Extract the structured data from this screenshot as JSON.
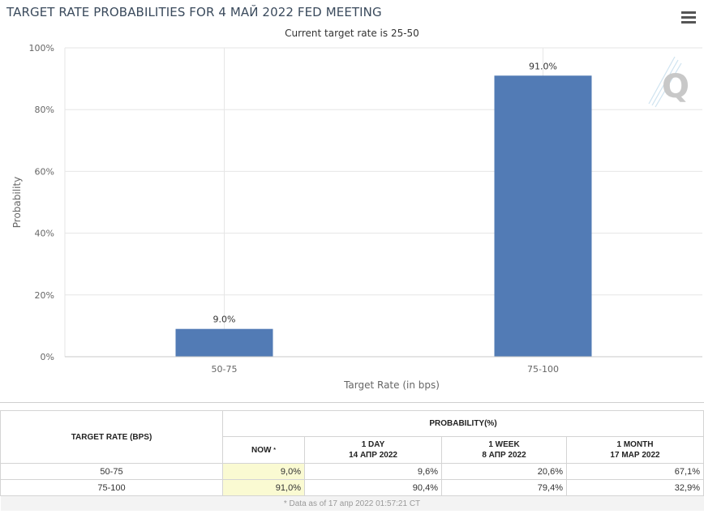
{
  "header": {
    "title": "TARGET RATE PROBABILITIES FOR 4 МАЙ 2022 FED MEETING",
    "subtitle": "Current target rate is 25-50"
  },
  "chart_data": {
    "type": "bar",
    "categories": [
      "50-75",
      "75-100"
    ],
    "values": [
      9.0,
      91.0
    ],
    "data_labels": [
      "9.0%",
      "91.0%"
    ],
    "xlabel": "Target Rate (in bps)",
    "ylabel": "Probability",
    "ylim": [
      0,
      100
    ],
    "yticks": [
      "0%",
      "20%",
      "40%",
      "60%",
      "80%",
      "100%"
    ],
    "grid": true,
    "bar_color": "#527bb5"
  },
  "table": {
    "col_target": "TARGET RATE (BPS)",
    "col_probability": "PROBABILITY(%)",
    "sub_headers": [
      {
        "line1": "NOW",
        "line2": ""
      },
      {
        "line1": "1 DAY",
        "line2": "14 АПР 2022"
      },
      {
        "line1": "1 WEEK",
        "line2": "8 АПР 2022"
      },
      {
        "line1": "1 MONTH",
        "line2": "17 МАР 2022"
      }
    ],
    "now_mark": "*",
    "rows": [
      {
        "rate": "50-75",
        "now": "9,0%",
        "day": "9,6%",
        "week": "20,6%",
        "month": "67,1%"
      },
      {
        "rate": "75-100",
        "now": "91,0%",
        "day": "90,4%",
        "week": "79,4%",
        "month": "32,9%"
      }
    ],
    "footnote": "* Data as of 17 апр 2022 01:57:21 CT"
  },
  "icons": {
    "menu": "hamburger-menu-icon",
    "logo": "q-logo-icon"
  }
}
